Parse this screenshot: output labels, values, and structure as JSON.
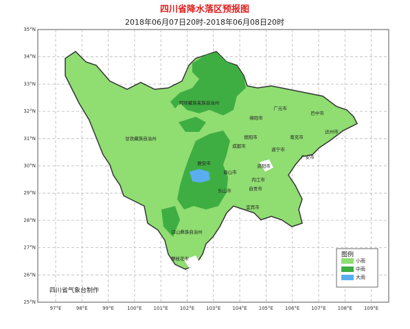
{
  "header": {
    "title": "四川省降水落区预报图",
    "subtitle": "2018年06月07日20时-2018年06月08日20时"
  },
  "lat_labels": [
    "35°N",
    "34°N",
    "33°N",
    "32°N",
    "31°N",
    "30°N",
    "29°N",
    "28°N",
    "27°N",
    "26°N",
    "25°N"
  ],
  "lon_labels": [
    "97°E",
    "98°E",
    "99°E",
    "100°E",
    "101°E",
    "102°E",
    "103°E",
    "104°E",
    "105°E",
    "106°E",
    "107°E",
    "108°E",
    "109°E"
  ],
  "places": [
    "阿坝藏族羌族自治州",
    "广元市",
    "巴中市",
    "绵阳市",
    "达州市",
    "德阳市",
    "南充市",
    "成都市",
    "遂宁市",
    "广安市",
    "甘孜藏族自治州",
    "雅安市",
    "资阳市",
    "眉山市",
    "内江市",
    "自贡市",
    "乐山市",
    "宜宾市",
    "凉山彝族自治州",
    "攀枝花市"
  ],
  "legend": {
    "title": "图例",
    "items": [
      {
        "label": "小雨",
        "color": "#90dd72"
      },
      {
        "label": "中雨",
        "color": "#3fae42"
      },
      {
        "label": "大雨",
        "color": "#5aaef0"
      }
    ]
  },
  "credit": "四川省气象台制作"
}
